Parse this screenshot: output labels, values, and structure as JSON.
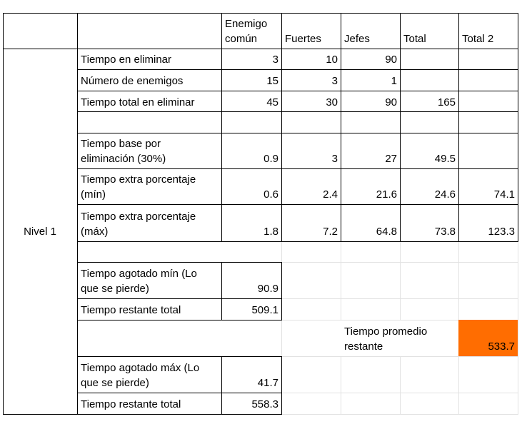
{
  "header": {
    "col_enemigo_comun": "Enemigo\ncomún",
    "col_fuertes": "Fuertes",
    "col_jefes": "Jefes",
    "col_total": "Total",
    "col_total2": "Total 2"
  },
  "group_label": "Nivel 1",
  "rows": {
    "tiempo_eliminar": {
      "label": "Tiempo en eliminar",
      "comun": "3",
      "fuertes": "10",
      "jefes": "90"
    },
    "numero_enemigos": {
      "label": "Número de enemigos",
      "comun": "15",
      "fuertes": "3",
      "jefes": "1"
    },
    "tiempo_total": {
      "label": "Tiempo total en eliminar",
      "comun": "45",
      "fuertes": "30",
      "jefes": "90",
      "total": "165"
    },
    "tiempo_base": {
      "label": "Tiempo base por\neliminación (30%)",
      "comun": "0.9",
      "fuertes": "3",
      "jefes": "27",
      "total": "49.5"
    },
    "extra_min": {
      "label": "Tiempo extra porcentaje\n(mín)",
      "comun": "0.6",
      "fuertes": "2.4",
      "jefes": "21.6",
      "total": "24.6",
      "total2": "74.1"
    },
    "extra_max": {
      "label": "Tiempo extra porcentaje\n(máx)",
      "comun": "1.8",
      "fuertes": "7.2",
      "jefes": "64.8",
      "total": "73.8",
      "total2": "123.3"
    },
    "agotado_min": {
      "label": "Tiempo agotado mín (Lo\nque se pierde)",
      "value": "90.9"
    },
    "restante_min": {
      "label": "Tiempo restante total",
      "value": "509.1"
    },
    "promedio": {
      "label": "Tiempo promedio\nrestante",
      "value": "533.7"
    },
    "agotado_max": {
      "label": "Tiempo agotado máx (Lo\nque se pierde)",
      "value": "41.7"
    },
    "restante_max": {
      "label": "Tiempo restante total",
      "value": "558.3"
    }
  },
  "colors": {
    "highlight": "#ff6d01",
    "grid": "#000000",
    "light_grid": "#e2e2e2"
  }
}
